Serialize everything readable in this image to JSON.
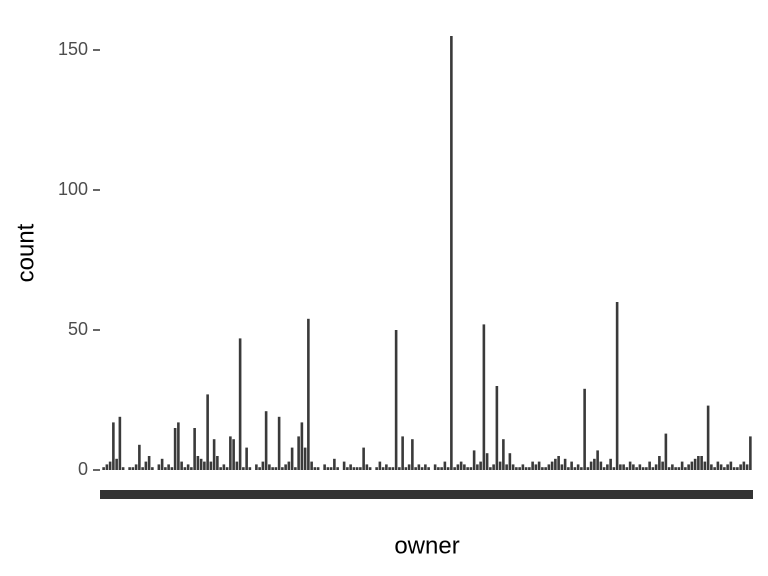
{
  "chart_data": {
    "type": "bar",
    "xlabel": "owner",
    "ylabel": "count",
    "color": "#3a3a3a",
    "categories": [
      null,
      null,
      null,
      null,
      null,
      null,
      null,
      null,
      null,
      null,
      null,
      null,
      null,
      null,
      null,
      null,
      null,
      null,
      null,
      null,
      null,
      null,
      null,
      null,
      null,
      null,
      null,
      null,
      null,
      null,
      null,
      null,
      null,
      null,
      null,
      null,
      null,
      null,
      null,
      null,
      null,
      null,
      null,
      null,
      null,
      null,
      null,
      null,
      null,
      null,
      null,
      null,
      null,
      null,
      null,
      null,
      null,
      null,
      null,
      null,
      null,
      null,
      null,
      null,
      null,
      null,
      null,
      null,
      null,
      null,
      null,
      null,
      null,
      null,
      null,
      null,
      null,
      null,
      null,
      null,
      null,
      null,
      null,
      null,
      null,
      null,
      null,
      null,
      null,
      null,
      null,
      null,
      null,
      null,
      null,
      null,
      null,
      null,
      null,
      null,
      null,
      null,
      null,
      null,
      null,
      null,
      null,
      null,
      null,
      null,
      null,
      null,
      null,
      null,
      null,
      null,
      null,
      null,
      null,
      null,
      null,
      null,
      null,
      null,
      null,
      null,
      null,
      null,
      null,
      null,
      null,
      null,
      null,
      null,
      null,
      null,
      null,
      null,
      null,
      null,
      null,
      null,
      null,
      null,
      null,
      null,
      null,
      null,
      null,
      null,
      null,
      null,
      null,
      null,
      null,
      null,
      null,
      null,
      null,
      null,
      null,
      null,
      null,
      null,
      null,
      null,
      null,
      null,
      null,
      null,
      null,
      null,
      null,
      null,
      null,
      null,
      null,
      null,
      null,
      null,
      null,
      null,
      null,
      null,
      null,
      null,
      null,
      null,
      null,
      null,
      null,
      null,
      null,
      null,
      null,
      null,
      null,
      null,
      null,
      null
    ],
    "values": [
      1,
      2,
      3,
      17,
      4,
      19,
      1,
      0,
      1,
      1,
      2,
      9,
      1,
      3,
      5,
      1,
      0,
      2,
      4,
      1,
      2,
      1,
      15,
      17,
      3,
      1,
      2,
      1,
      15,
      5,
      4,
      3,
      27,
      3,
      11,
      5,
      1,
      2,
      1,
      12,
      11,
      3,
      47,
      1,
      8,
      1,
      0,
      2,
      1,
      3,
      21,
      2,
      1,
      1,
      19,
      1,
      2,
      3,
      8,
      1,
      12,
      17,
      8,
      54,
      3,
      1,
      1,
      0,
      2,
      1,
      1,
      4,
      1,
      0,
      3,
      1,
      2,
      1,
      1,
      1,
      8,
      2,
      1,
      0,
      1,
      3,
      1,
      2,
      1,
      1,
      50,
      1,
      12,
      1,
      2,
      11,
      1,
      2,
      1,
      2,
      1,
      0,
      2,
      1,
      1,
      3,
      1,
      155,
      1,
      2,
      3,
      2,
      1,
      1,
      7,
      2,
      3,
      52,
      6,
      1,
      2,
      30,
      3,
      11,
      2,
      6,
      2,
      1,
      1,
      2,
      1,
      1,
      3,
      2,
      3,
      1,
      1,
      2,
      3,
      4,
      5,
      2,
      4,
      1,
      3,
      1,
      2,
      1,
      29,
      1,
      3,
      4,
      7,
      3,
      1,
      2,
      4,
      1,
      60,
      2,
      2,
      1,
      3,
      2,
      1,
      2,
      1,
      1,
      3,
      1,
      2,
      5,
      3,
      13,
      1,
      2,
      1,
      1,
      3,
      1,
      2,
      3,
      4,
      5,
      5,
      3,
      23,
      2,
      1,
      3,
      2,
      1,
      2,
      3,
      1,
      1,
      2,
      3,
      2,
      12
    ],
    "ylim": [
      -7,
      157
    ],
    "yticks": [
      0,
      50,
      100,
      150
    ],
    "grid": false
  }
}
